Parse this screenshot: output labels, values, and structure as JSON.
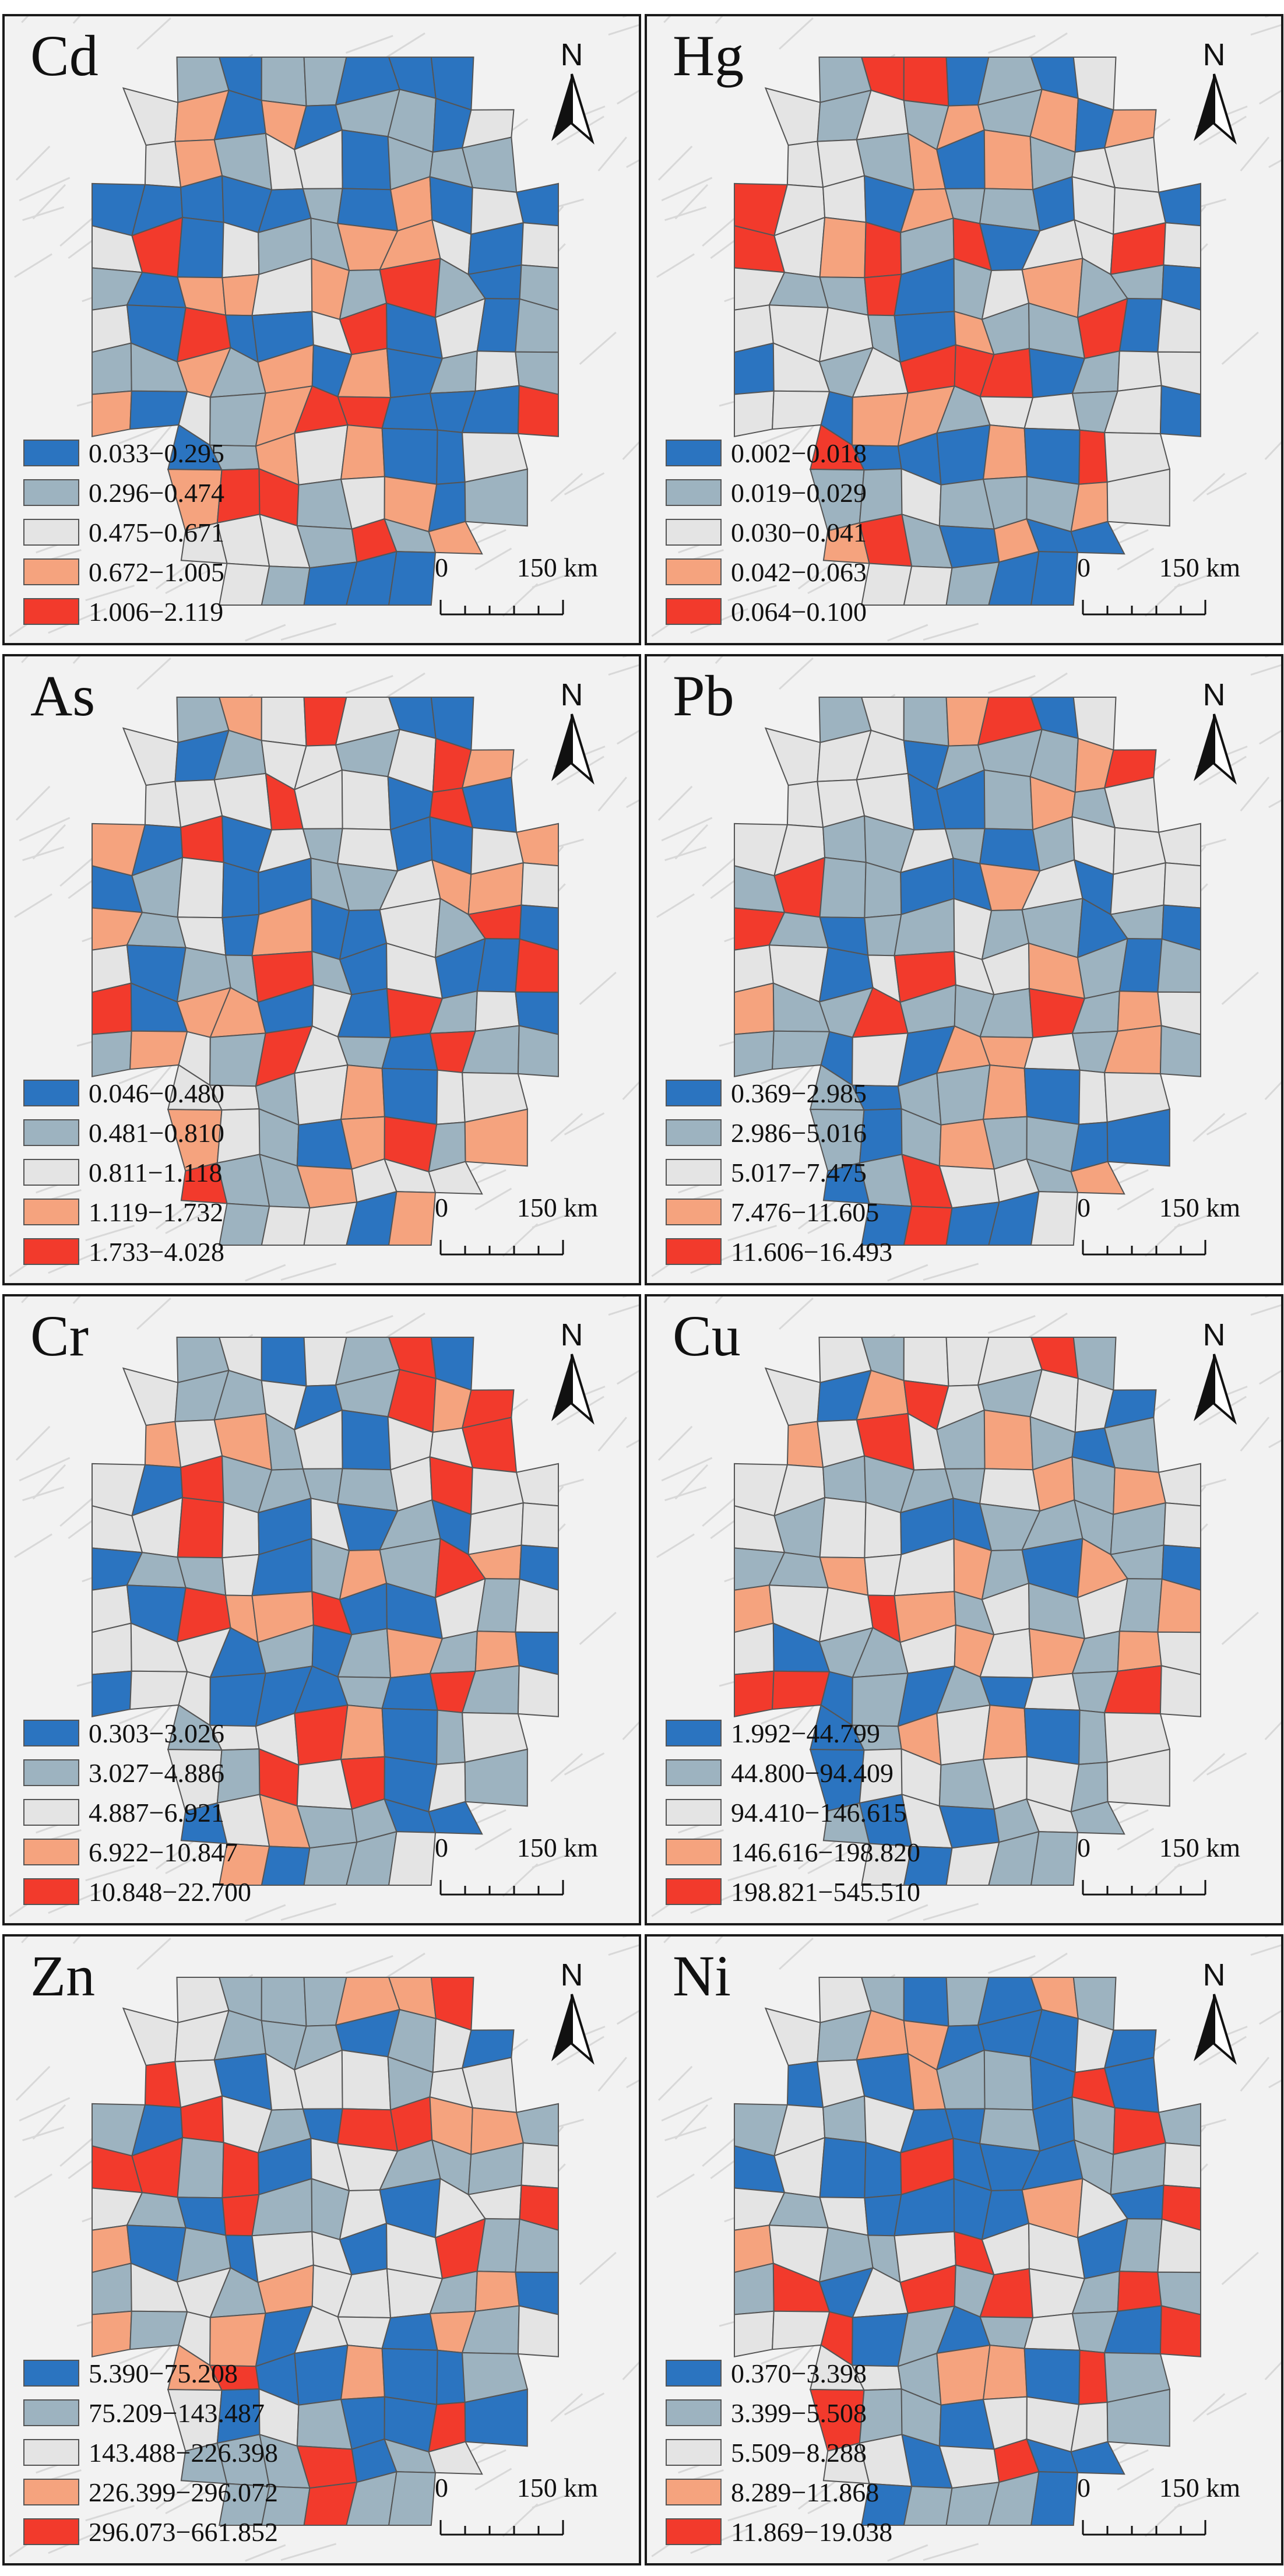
{
  "figure": {
    "panels": [
      {
        "element": "Cd",
        "north_label": "N",
        "scale": {
          "zero": "0",
          "distance": "150 km"
        },
        "legend": [
          "0.033−0.295",
          "0.296−0.474",
          "0.475−0.671",
          "0.672−1.005",
          "1.006−2.119"
        ]
      },
      {
        "element": "Hg",
        "north_label": "N",
        "scale": {
          "zero": "0",
          "distance": "150 km"
        },
        "legend": [
          "0.002−0.018",
          "0.019−0.029",
          "0.030−0.041",
          "0.042−0.063",
          "0.064−0.100"
        ]
      },
      {
        "element": "As",
        "north_label": "N",
        "scale": {
          "zero": "0",
          "distance": "150 km"
        },
        "legend": [
          "0.046−0.480",
          "0.481−0.810",
          "0.811−1.118",
          "1.119−1.732",
          "1.733−4.028"
        ]
      },
      {
        "element": "Pb",
        "north_label": "N",
        "scale": {
          "zero": "0",
          "distance": "150 km"
        },
        "legend": [
          "0.369−2.985",
          "2.986−5.016",
          "5.017−7.475",
          "7.476−11.605",
          "11.606−16.493"
        ]
      },
      {
        "element": "Cr",
        "north_label": "N",
        "scale": {
          "zero": "0",
          "distance": "150 km"
        },
        "legend": [
          "0.303−3.026",
          "3.027−4.886",
          "4.887−6.921",
          "6.922−10.847",
          "10.848−22.700"
        ]
      },
      {
        "element": "Cu",
        "north_label": "N",
        "scale": {
          "zero": "0",
          "distance": "150 km"
        },
        "legend": [
          "1.992−44.799",
          "44.800−94.409",
          "94.410−146.615",
          "146.616−198.820",
          "198.821−545.510"
        ]
      },
      {
        "element": "Zn",
        "north_label": "N",
        "scale": {
          "zero": "0",
          "distance": "150 km"
        },
        "legend": [
          "5.390−75.208",
          "75.209−143.487",
          "143.488−226.398",
          "226.399−296.072",
          "296.073−661.852"
        ]
      },
      {
        "element": "Ni",
        "north_label": "N",
        "scale": {
          "zero": "0",
          "distance": "150 km"
        },
        "legend": [
          "0.370−3.398",
          "3.399−5.508",
          "5.509−8.288",
          "8.289−11.868",
          "11.869−19.038"
        ]
      }
    ],
    "class_colors": [
      "#2b74c0",
      "#9db3c0",
      "#e4e4e4",
      "#f5a37e",
      "#f23a2c"
    ],
    "border_color": "#555555"
  }
}
